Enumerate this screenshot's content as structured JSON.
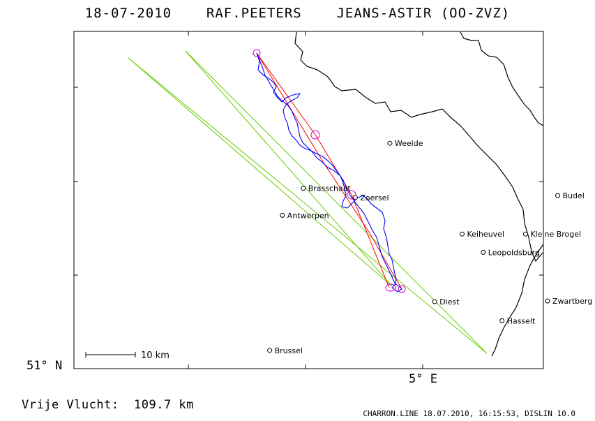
{
  "header": {
    "title": "18-07-2010    RAF.PEETERS    JEANS-ASTIR (OO-ZVZ)"
  },
  "map": {
    "lat_label": "51° N",
    "lon_label": "5° E",
    "scale_label": "10 km",
    "places": [
      {
        "name": "Weelde",
        "lat": 51.416,
        "lon": 4.86
      },
      {
        "name": "Brasschaat",
        "lat": 51.293,
        "lon": 4.491
      },
      {
        "name": "Zoersel",
        "lat": 51.268,
        "lon": 4.713
      },
      {
        "name": "Budel",
        "lat": 51.273,
        "lon": 5.575
      },
      {
        "name": "Antwerpen",
        "lat": 51.219,
        "lon": 4.402
      },
      {
        "name": "Keiheuvel",
        "lat": 51.168,
        "lon": 5.168
      },
      {
        "name": "Kleine Brogel",
        "lat": 51.168,
        "lon": 5.438
      },
      {
        "name": "Leopoldsburg",
        "lat": 51.118,
        "lon": 5.258
      },
      {
        "name": "Zwartberg",
        "lat": 50.985,
        "lon": 5.532
      },
      {
        "name": "Diest",
        "lat": 50.983,
        "lon": 5.051
      },
      {
        "name": "Hasselt",
        "lat": 50.931,
        "lon": 5.338
      },
      {
        "name": "Brussel",
        "lat": 50.85,
        "lon": 4.348
      }
    ],
    "colors": {
      "track": "#0000ff",
      "task": "#ff0000",
      "sector": "#66cc00",
      "turnpoint": "#cc00cc",
      "border": "#000000"
    }
  },
  "footer": {
    "distance": "Vrije Vlucht:  109.7 km",
    "software": "CHARRON.LINE 18.07.2010, 16:15:53, DISLIN 10.0"
  }
}
